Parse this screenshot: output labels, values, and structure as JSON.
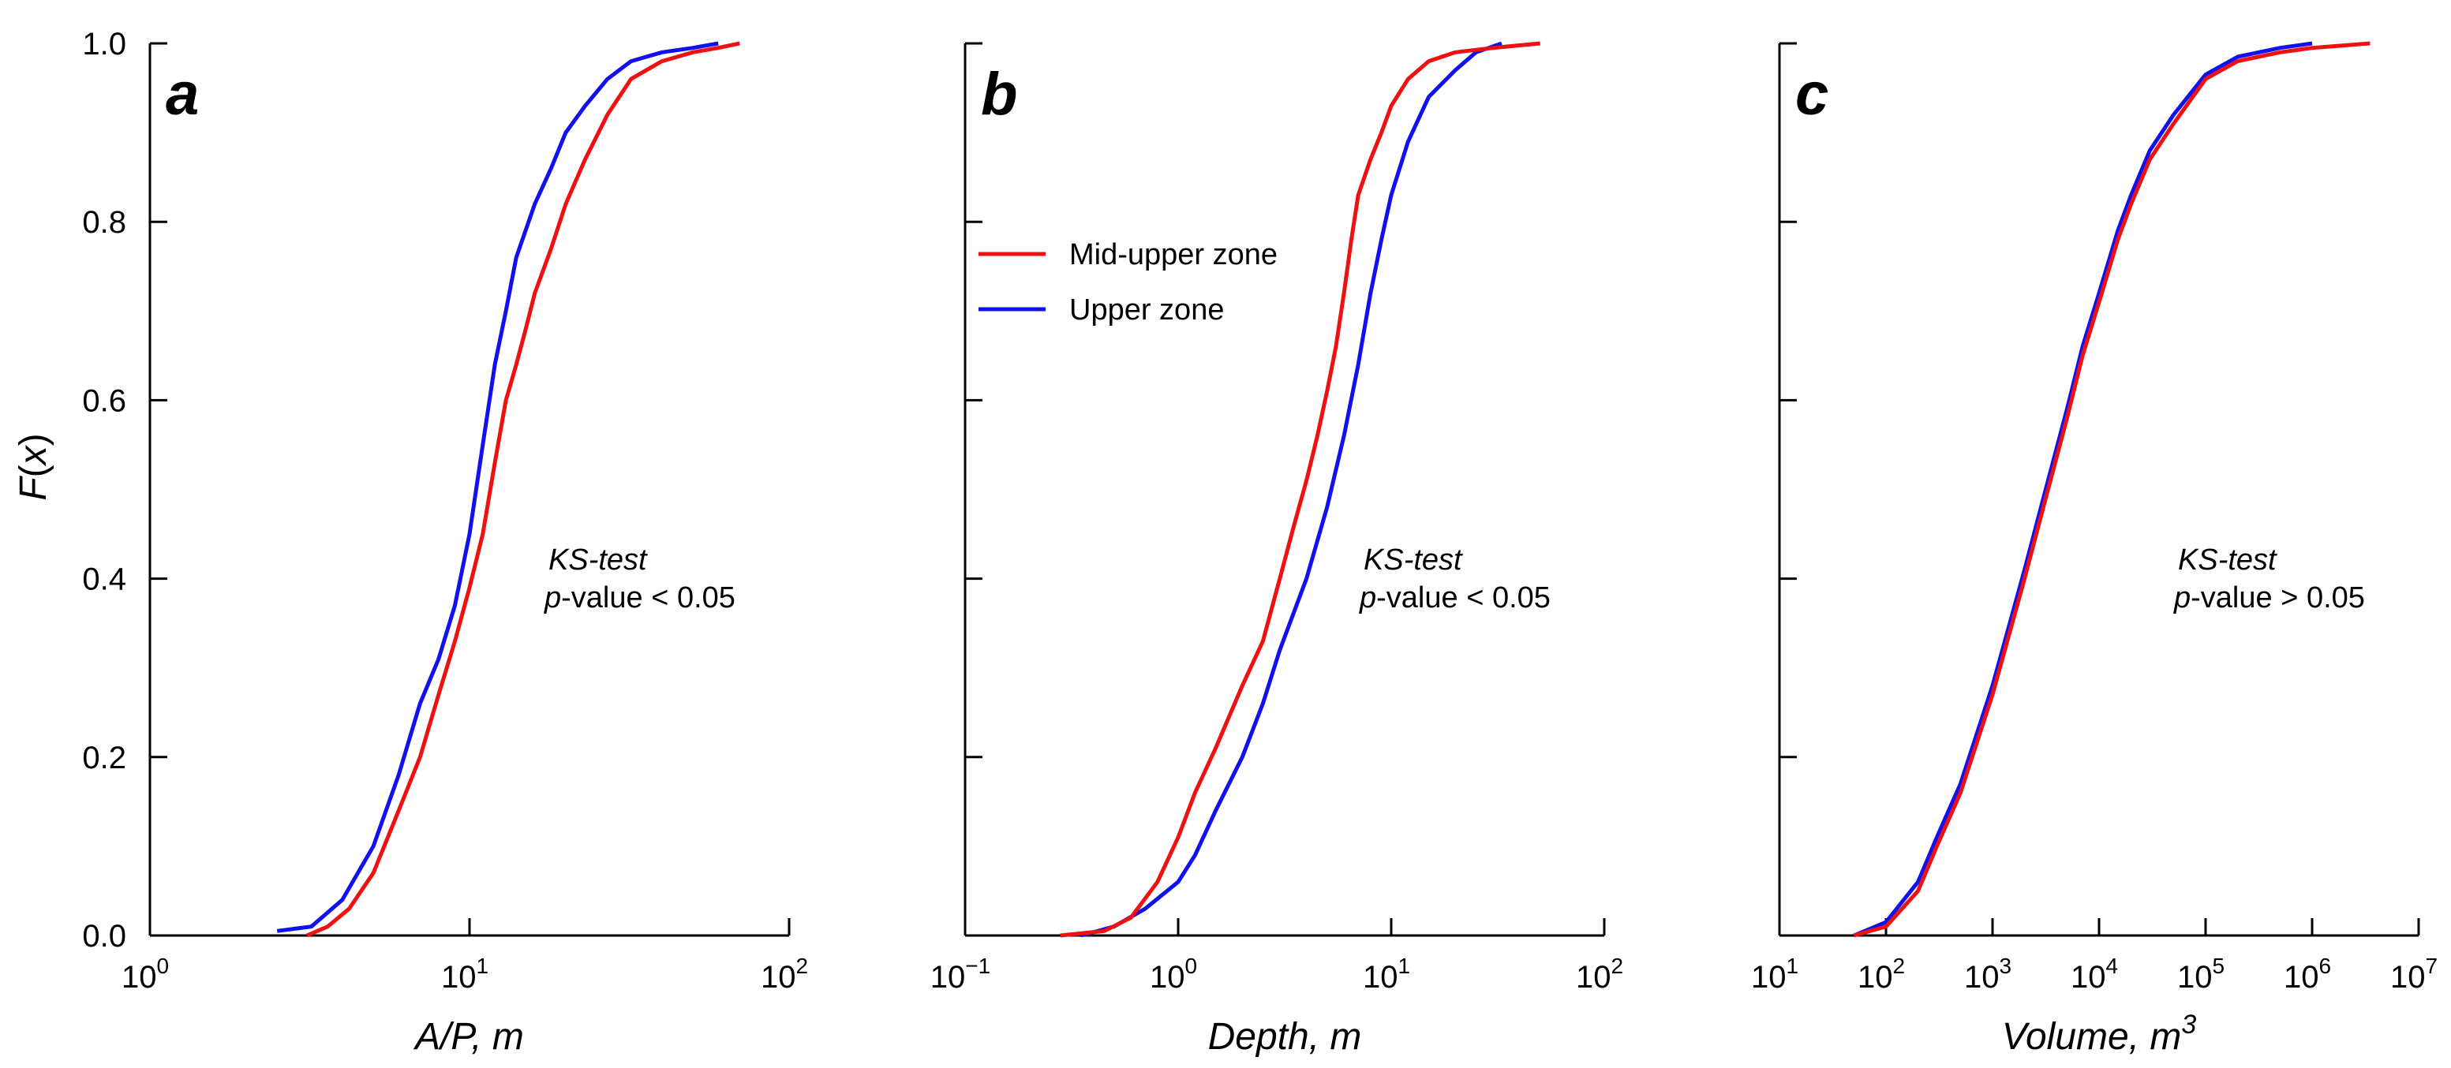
{
  "colors": {
    "mid_upper": "#ee1111",
    "upper": "#1111ee",
    "axis": "#000000"
  },
  "legend": {
    "mid_upper_label": "Mid-upper zone",
    "upper_label": "Upper zone",
    "panel": 1
  },
  "y_axis": {
    "label_italic": "F",
    "label_paren_open": "(",
    "label_var": "x",
    "label_paren_close": ")",
    "ticks": [
      0,
      0.2,
      0.4,
      0.6,
      0.8,
      1.0
    ],
    "tick_labels": [
      "0.0",
      "0.2",
      "0.4",
      "0.6",
      "0.8",
      "1.0"
    ]
  },
  "chart_data": [
    {
      "type": "line",
      "panel_letter": "a",
      "xlabel": "A/P, m",
      "xlabel_parts": {
        "text": "A/P, m",
        "sup": ""
      },
      "ylabel": "F(x)",
      "xscale": "log",
      "xlim_exp": [
        0,
        2
      ],
      "xticks_exp": [
        0,
        1,
        2
      ],
      "xtick_base": "10",
      "ylim": [
        0,
        1
      ],
      "annotation": {
        "line1": "KS-test",
        "line2_italic": "p",
        "line2_rest": "-value < 0.05"
      },
      "series": [
        {
          "name": "Mid-upper zone",
          "color": "#ee1111",
          "x": [
            3.1,
            3.6,
            4.2,
            5.0,
            6.0,
            7.0,
            8.0,
            9.0,
            10.0,
            11.0,
            12.0,
            13.0,
            14.0,
            15.0,
            16.0,
            18.0,
            20.0,
            23.0,
            27.0,
            32.0,
            40.0,
            50.0,
            60.0,
            70.0
          ],
          "y": [
            0.0,
            0.01,
            0.03,
            0.07,
            0.14,
            0.2,
            0.27,
            0.33,
            0.39,
            0.45,
            0.53,
            0.6,
            0.64,
            0.68,
            0.72,
            0.77,
            0.82,
            0.87,
            0.92,
            0.96,
            0.98,
            0.99,
            0.995,
            1.0
          ]
        },
        {
          "name": "Upper zone",
          "color": "#1111ee",
          "x": [
            2.5,
            3.2,
            4.0,
            5.0,
            6.0,
            7.0,
            8.0,
            9.0,
            10.0,
            11.0,
            12.0,
            13.0,
            14.0,
            16.0,
            18.0,
            20.0,
            23.0,
            27.0,
            32.0,
            40.0,
            50.0,
            60.0
          ],
          "y": [
            0.005,
            0.01,
            0.04,
            0.1,
            0.18,
            0.26,
            0.31,
            0.37,
            0.45,
            0.55,
            0.64,
            0.7,
            0.76,
            0.82,
            0.86,
            0.9,
            0.93,
            0.96,
            0.98,
            0.99,
            0.995,
            1.0
          ]
        }
      ]
    },
    {
      "type": "line",
      "panel_letter": "b",
      "xlabel": "Depth, m",
      "xlabel_parts": {
        "text": "Depth, m",
        "sup": ""
      },
      "ylabel": "F(x)",
      "xscale": "log",
      "xlim_exp": [
        -1,
        2
      ],
      "xticks_exp": [
        -1,
        0,
        1,
        2
      ],
      "xtick_base": "10",
      "ylim": [
        0,
        1
      ],
      "annotation": {
        "line1": "KS-test",
        "line2_italic": "p",
        "line2_rest": "-value < 0.05"
      },
      "series": [
        {
          "name": "Mid-upper zone",
          "color": "#ee1111",
          "x": [
            0.28,
            0.45,
            0.6,
            0.8,
            1.0,
            1.2,
            1.5,
            2.0,
            2.5,
            3.0,
            3.5,
            4.0,
            4.5,
            5.0,
            5.5,
            6.0,
            6.5,
            7.0,
            8.0,
            9.0,
            10.0,
            12.0,
            15.0,
            20.0,
            30.0,
            50.0
          ],
          "y": [
            0.0,
            0.005,
            0.02,
            0.06,
            0.11,
            0.16,
            0.21,
            0.28,
            0.33,
            0.4,
            0.46,
            0.51,
            0.56,
            0.61,
            0.66,
            0.72,
            0.78,
            0.83,
            0.87,
            0.9,
            0.93,
            0.96,
            0.98,
            0.99,
            0.995,
            1.0
          ]
        },
        {
          "name": "Upper zone",
          "color": "#1111ee",
          "x": [
            0.35,
            0.5,
            0.7,
            1.0,
            1.2,
            1.5,
            2.0,
            2.5,
            3.0,
            4.0,
            5.0,
            6.0,
            7.0,
            8.0,
            9.0,
            10.0,
            12.0,
            15.0,
            20.0,
            25.0,
            33.0
          ],
          "y": [
            0.0,
            0.01,
            0.03,
            0.06,
            0.09,
            0.14,
            0.2,
            0.26,
            0.32,
            0.4,
            0.48,
            0.56,
            0.64,
            0.72,
            0.78,
            0.83,
            0.89,
            0.94,
            0.97,
            0.99,
            1.0
          ]
        }
      ]
    },
    {
      "type": "line",
      "panel_letter": "c",
      "xlabel": "Volume, m3",
      "xlabel_parts": {
        "text": "Volume, m",
        "sup": "3"
      },
      "ylabel": "F(x)",
      "xscale": "log",
      "xlim_exp": [
        1,
        7
      ],
      "xticks_exp": [
        1,
        2,
        3,
        4,
        5,
        6,
        7
      ],
      "xtick_base": "10",
      "ylim": [
        0,
        1
      ],
      "annotation": {
        "line1": "KS-test",
        "line2_italic": "p",
        "line2_rest": "-value > 0.05"
      },
      "series": [
        {
          "name": "Mid-upper zone",
          "color": "#ee1111",
          "x": [
            50,
            100,
            200,
            300,
            500,
            1000,
            2000,
            3000,
            5000,
            7000,
            10000,
            15000,
            20000,
            30000,
            50000,
            100000,
            200000,
            500000,
            1000000,
            3500000
          ],
          "y": [
            0.0,
            0.01,
            0.05,
            0.1,
            0.16,
            0.27,
            0.4,
            0.48,
            0.58,
            0.65,
            0.71,
            0.78,
            0.82,
            0.87,
            0.91,
            0.96,
            0.98,
            0.99,
            0.995,
            1.0
          ]
        },
        {
          "name": "Upper zone",
          "color": "#1111ee",
          "x": [
            50,
            100,
            200,
            300,
            500,
            1000,
            2000,
            3000,
            5000,
            7000,
            10000,
            15000,
            20000,
            30000,
            50000,
            100000,
            200000,
            500000,
            1000000
          ],
          "y": [
            0.0,
            0.015,
            0.06,
            0.11,
            0.17,
            0.28,
            0.41,
            0.49,
            0.59,
            0.66,
            0.72,
            0.79,
            0.83,
            0.88,
            0.92,
            0.965,
            0.985,
            0.995,
            1.0
          ]
        }
      ]
    }
  ]
}
